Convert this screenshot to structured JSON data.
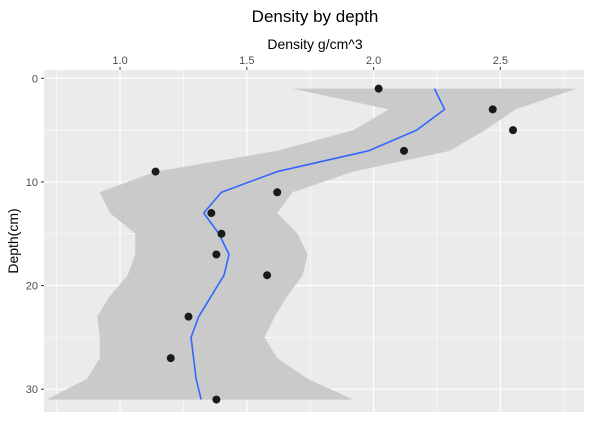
{
  "chart_data": {
    "type": "scatter",
    "title": "Density by depth",
    "xlabel": "Density g/cm^3",
    "ylabel": "Depth(cm)",
    "x_axis_position": "top",
    "y_reversed": true,
    "xlim": [
      0.7,
      2.83
    ],
    "ylim": [
      -0.8,
      32.2
    ],
    "x_ticks": [
      1.0,
      1.5,
      2.0,
      2.5
    ],
    "x_tick_labels": [
      "1.0",
      "1.5",
      "2.0",
      "2.5"
    ],
    "x_minor_ticks": [
      0.75,
      1.25,
      1.75,
      2.25,
      2.75
    ],
    "y_ticks": [
      0,
      10,
      20,
      30
    ],
    "y_tick_labels": [
      "0",
      "10",
      "20",
      "30"
    ],
    "y_minor_ticks": [
      5,
      15,
      25
    ],
    "grid": true,
    "legend": "none",
    "colors": {
      "panel": "#ebebeb",
      "grid": "#ffffff",
      "points": "#1a1a1a",
      "smooth_line": "#3366ff",
      "ribbon": "#c8c8c8"
    },
    "points": [
      {
        "x": 2.02,
        "y": 1
      },
      {
        "x": 2.47,
        "y": 3
      },
      {
        "x": 2.55,
        "y": 5
      },
      {
        "x": 2.12,
        "y": 7
      },
      {
        "x": 1.14,
        "y": 9
      },
      {
        "x": 1.62,
        "y": 11
      },
      {
        "x": 1.36,
        "y": 13
      },
      {
        "x": 1.4,
        "y": 15
      },
      {
        "x": 1.38,
        "y": 17
      },
      {
        "x": 1.58,
        "y": 19
      },
      {
        "x": 1.27,
        "y": 23
      },
      {
        "x": 1.2,
        "y": 27
      },
      {
        "x": 1.38,
        "y": 31
      }
    ],
    "smooth": [
      {
        "y": 1,
        "x": 2.24,
        "lo": 1.68,
        "hi": 2.8
      },
      {
        "y": 3,
        "x": 2.28,
        "lo": 2.06,
        "hi": 2.56
      },
      {
        "y": 5,
        "x": 2.17,
        "lo": 1.92,
        "hi": 2.44
      },
      {
        "y": 7,
        "x": 1.98,
        "lo": 1.62,
        "hi": 2.3
      },
      {
        "y": 9,
        "x": 1.62,
        "lo": 1.14,
        "hi": 1.92
      },
      {
        "y": 11,
        "x": 1.4,
        "lo": 0.92,
        "hi": 1.68
      },
      {
        "y": 13,
        "x": 1.33,
        "lo": 0.96,
        "hi": 1.62
      },
      {
        "y": 15,
        "x": 1.39,
        "lo": 1.06,
        "hi": 1.7
      },
      {
        "y": 17,
        "x": 1.43,
        "lo": 1.06,
        "hi": 1.74
      },
      {
        "y": 19,
        "x": 1.41,
        "lo": 1.03,
        "hi": 1.72
      },
      {
        "y": 21,
        "x": 1.36,
        "lo": 0.96,
        "hi": 1.66
      },
      {
        "y": 23,
        "x": 1.31,
        "lo": 0.91,
        "hi": 1.61
      },
      {
        "y": 25,
        "x": 1.28,
        "lo": 0.92,
        "hi": 1.57
      },
      {
        "y": 27,
        "x": 1.29,
        "lo": 0.92,
        "hi": 1.62
      },
      {
        "y": 29,
        "x": 1.3,
        "lo": 0.87,
        "hi": 1.74
      },
      {
        "y": 31,
        "x": 1.32,
        "lo": 0.71,
        "hi": 1.92
      }
    ]
  }
}
